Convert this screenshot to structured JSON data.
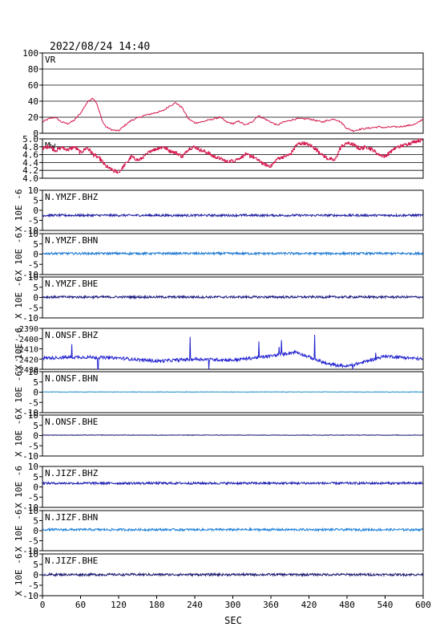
{
  "timestamp": "2022/08/24 14:40",
  "chart_data": {
    "type": "line",
    "xlabel": "SEC",
    "x_ticks": [
      "0",
      "60",
      "120",
      "180",
      "240",
      "300",
      "360",
      "420",
      "480",
      "540",
      "600"
    ],
    "xlim": [
      0,
      600
    ],
    "panels": [
      {
        "key": "vr",
        "label": "VR",
        "ylabel": "",
        "ylim": [
          0,
          100
        ],
        "yticks": [
          "0",
          "20",
          "40",
          "60",
          "80",
          "100"
        ],
        "color": "#d4144a",
        "grid": true,
        "series": {
          "x": [
            0,
            10,
            20,
            30,
            40,
            50,
            60,
            70,
            75,
            80,
            85,
            90,
            95,
            100,
            110,
            120,
            130,
            140,
            150,
            160,
            170,
            180,
            190,
            200,
            210,
            220,
            230,
            240,
            250,
            260,
            270,
            280,
            290,
            300,
            310,
            320,
            330,
            340,
            350,
            360,
            370,
            380,
            390,
            400,
            410,
            420,
            430,
            440,
            450,
            460,
            470,
            480,
            490,
            500,
            510,
            520,
            530,
            540,
            550,
            560,
            570,
            580,
            590,
            600
          ],
          "y": [
            14,
            18,
            20,
            14,
            12,
            16,
            25,
            38,
            42,
            44,
            38,
            26,
            14,
            8,
            4,
            3,
            10,
            16,
            19,
            22,
            24,
            26,
            28,
            34,
            38,
            32,
            18,
            13,
            14,
            16,
            18,
            20,
            14,
            12,
            15,
            10,
            14,
            22,
            18,
            14,
            10,
            14,
            16,
            18,
            18,
            18,
            16,
            14,
            16,
            18,
            14,
            6,
            3,
            5,
            6,
            7,
            8,
            7,
            8,
            8,
            9,
            10,
            12,
            18
          ]
        }
      },
      {
        "key": "mw",
        "label": "Mw",
        "ylabel": "",
        "ylim": [
          4.0,
          5.0
        ],
        "yticks": [
          "4.0",
          "4.2",
          "4.4",
          "4.6",
          "4.8",
          "5.0"
        ],
        "color": "#d4144a",
        "grid": true,
        "series": {
          "x": [
            0,
            10,
            20,
            30,
            40,
            50,
            60,
            70,
            80,
            90,
            100,
            110,
            120,
            130,
            140,
            150,
            160,
            170,
            180,
            190,
            200,
            210,
            220,
            230,
            240,
            250,
            260,
            270,
            280,
            290,
            300,
            310,
            320,
            330,
            340,
            350,
            360,
            370,
            380,
            390,
            400,
            410,
            420,
            430,
            440,
            450,
            460,
            470,
            480,
            490,
            500,
            510,
            520,
            530,
            540,
            550,
            560,
            570,
            580,
            590,
            600
          ],
          "y": [
            4.75,
            4.82,
            4.7,
            4.78,
            4.72,
            4.8,
            4.65,
            4.78,
            4.6,
            4.5,
            4.3,
            4.2,
            4.15,
            4.35,
            4.55,
            4.45,
            4.55,
            4.7,
            4.75,
            4.8,
            4.7,
            4.65,
            4.55,
            4.75,
            4.8,
            4.7,
            4.65,
            4.55,
            4.5,
            4.42,
            4.45,
            4.5,
            4.6,
            4.55,
            4.45,
            4.35,
            4.3,
            4.5,
            4.55,
            4.6,
            4.85,
            4.9,
            4.85,
            4.75,
            4.6,
            4.5,
            4.45,
            4.8,
            4.9,
            4.85,
            4.75,
            4.8,
            4.72,
            4.6,
            4.55,
            4.7,
            4.8,
            4.85,
            4.9,
            4.95,
            4.98
          ]
        }
      },
      {
        "key": "ymzf_bhz",
        "label": "N.YMZF.BHZ",
        "ylabel": "X 10E -6",
        "ylim": [
          -10,
          10
        ],
        "yticks": [
          "-10",
          "-5",
          "0",
          "5",
          "10"
        ],
        "color": "#1a1aa0",
        "grid": false,
        "series": {
          "x": [
            0,
            600
          ],
          "y": [
            -2.5,
            -2.5
          ]
        }
      },
      {
        "key": "ymzf_bhn",
        "label": "N.YMZF.BHN",
        "ylabel": "X 10E -6",
        "ylim": [
          -10,
          10
        ],
        "yticks": [
          "-10",
          "-5",
          "0",
          "5",
          "10"
        ],
        "color": "#1e78d0",
        "grid": false,
        "series": {
          "x": [
            0,
            600
          ],
          "y": [
            0.3,
            0.3
          ]
        }
      },
      {
        "key": "ymzf_bhe",
        "label": "N.YMZF.BHE",
        "ylabel": "X 10E -6",
        "ylim": [
          -10,
          10
        ],
        "yticks": [
          "-10",
          "-5",
          "0",
          "5",
          "10"
        ],
        "color": "#1a1a80",
        "grid": false,
        "series": {
          "x": [
            0,
            600
          ],
          "y": [
            0.2,
            0.2
          ]
        }
      },
      {
        "key": "onsf_bhz",
        "label": "N.ONSF.BHZ",
        "ylabel": "X 10E -6",
        "ylim": [
          -2430,
          -2390
        ],
        "yticks": [
          "-2430",
          "-2420",
          "-2410",
          "-2400",
          "-2390"
        ],
        "color": "#2020d0",
        "grid": false,
        "series": {
          "x": [
            0,
            60,
            120,
            180,
            240,
            300,
            360,
            390,
            400,
            420,
            450,
            480,
            500,
            540,
            600
          ],
          "y": [
            -2419,
            -2418,
            -2419,
            -2422,
            -2420,
            -2421,
            -2417,
            -2414,
            -2413,
            -2418,
            -2425,
            -2427,
            -2424,
            -2417,
            -2420
          ]
        }
      },
      {
        "key": "onsf_bhn",
        "label": "N.ONSF.BHN",
        "ylabel": "X 10E -6",
        "ylim": [
          -10,
          10
        ],
        "yticks": [
          "-10",
          "-5",
          "0",
          "5",
          "10"
        ],
        "color": "#1e90d0",
        "grid": false,
        "series": {
          "x": [
            0,
            600
          ],
          "y": [
            0.1,
            0.1
          ]
        }
      },
      {
        "key": "onsf_bhe",
        "label": "N.ONSF.BHE",
        "ylabel": "X 10E -6",
        "ylim": [
          -10,
          10
        ],
        "yticks": [
          "-10",
          "-5",
          "0",
          "5",
          "10"
        ],
        "color": "#1a1a70",
        "grid": false,
        "series": {
          "x": [
            0,
            600
          ],
          "y": [
            0.2,
            0.2
          ]
        }
      },
      {
        "key": "jizf_bhz",
        "label": "N.JIZF.BHZ",
        "ylabel": "X 10E -6",
        "ylim": [
          -10,
          10
        ],
        "yticks": [
          "-10",
          "-5",
          "0",
          "5",
          "10"
        ],
        "color": "#1a1ab0",
        "grid": false,
        "series": {
          "x": [
            0,
            600
          ],
          "y": [
            1.8,
            1.8
          ]
        }
      },
      {
        "key": "jizf_bhn",
        "label": "N.JIZF.BHN",
        "ylabel": "X 10E -6",
        "ylim": [
          -10,
          10
        ],
        "yticks": [
          "-10",
          "-5",
          "0",
          "5",
          "10"
        ],
        "color": "#1e80d8",
        "grid": false,
        "series": {
          "x": [
            0,
            600
          ],
          "y": [
            0.5,
            0.5
          ]
        }
      },
      {
        "key": "jizf_bhe",
        "label": "N.JIZF.BHE",
        "ylabel": "X 10E -6",
        "ylim": [
          -10,
          10
        ],
        "yticks": [
          "-10",
          "-5",
          "0",
          "5",
          "10"
        ],
        "color": "#1a1a70",
        "grid": false,
        "series": {
          "x": [
            0,
            600
          ],
          "y": [
            0.1,
            0.1
          ]
        }
      }
    ]
  }
}
